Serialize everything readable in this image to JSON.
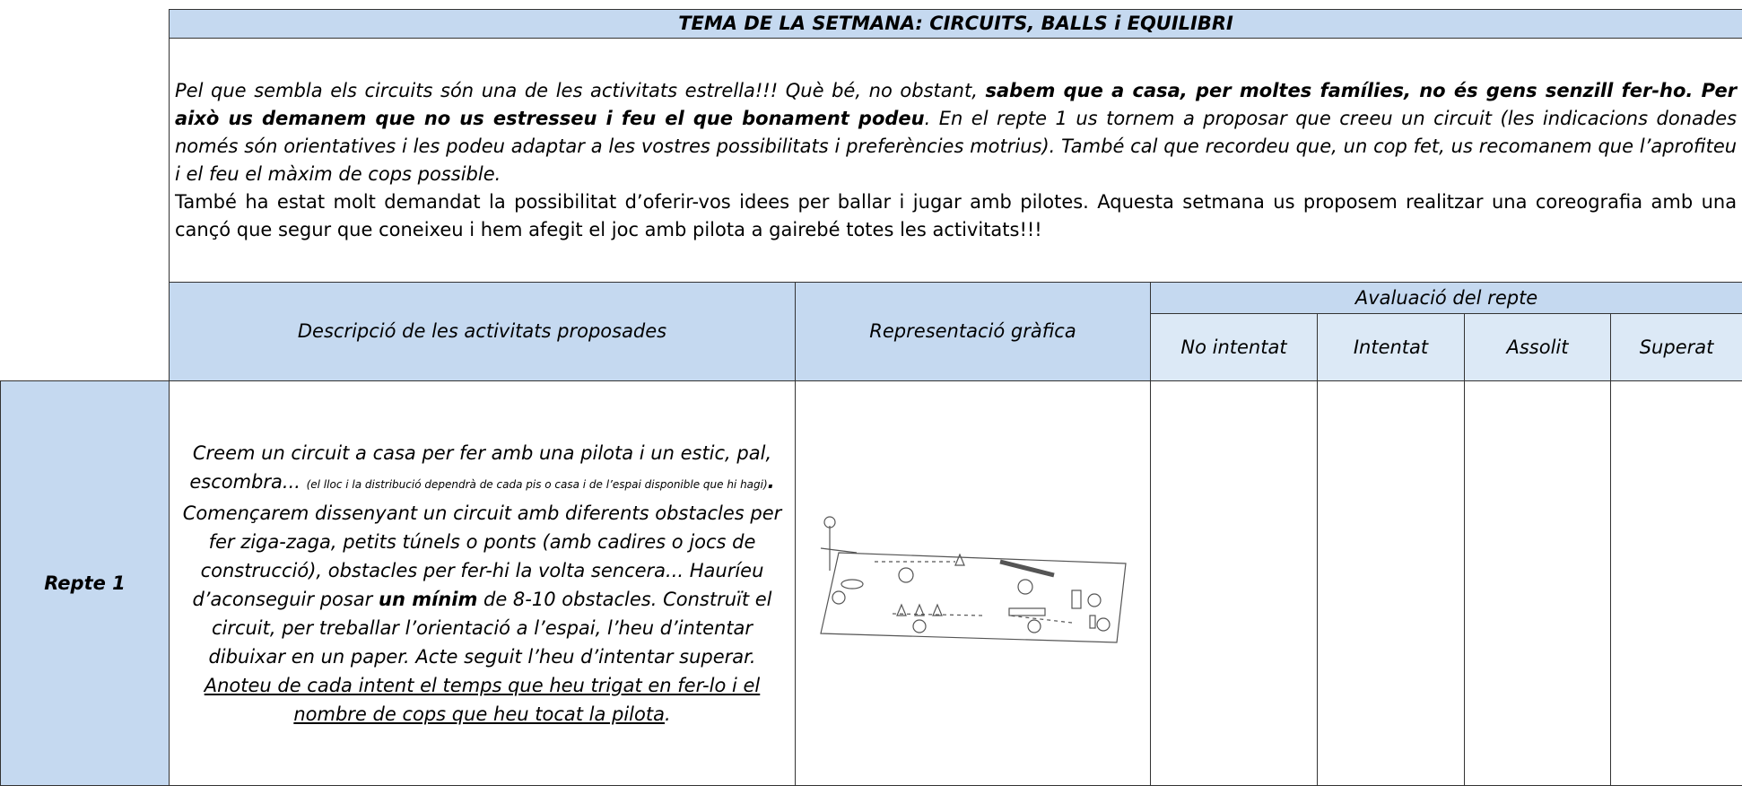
{
  "header": {
    "title": "TEMA DE LA SETMANA: CIRCUITS, BALLS i EQUILIBRI"
  },
  "intro": {
    "paragraph1": [
      "Pel que sembla els circuits són una de les activitats estrella!!! Què bé, no obstant, ",
      "sabem que a casa, per moltes famílies, no és gens senzill fer-ho. Per això us demanem que no us estresseu i feu el que bonament podeu",
      ". En el repte 1 us tornem a proposar que creeu un circuit (les indicacions donades només són orientatives i les podeu adaptar a les vostres possibilitats i preferències motrius). També cal que recordeu que, un cop fet, us recomanem que l’aprofiteu i el feu el màxim de cops possible."
    ],
    "paragraph2": "També ha estat molt demandat la possibilitat d’oferir-vos idees per ballar i jugar amb pilotes. Aquesta setmana us proposem realitzar una coreografia amb una cançó que segur que coneixeu i hem afegit el joc amb pilota a gairebé totes les activitats!!!"
  },
  "table": {
    "columns": {
      "description": "Descripció de les activitats proposades",
      "graphic": "Representació gràfica",
      "evaluation": "Avaluació del repte",
      "levels": [
        "No intentat",
        "Intentat",
        "Assolit",
        "Superat"
      ]
    },
    "rows": [
      {
        "label": "Repte 1",
        "description": [
          "Creem un circuit a casa per fer amb una pilota i un estic, pal, escombra... ",
          "(el lloc i la distribució dependrà de cada pis o casa i de l’espai disponible que hi hagi)",
          ".",
          "Començarem dissenyant un circuit amb diferents obstacles per fer ziga-zaga, petits túnels o ponts (amb cadires o jocs de construcció), obstacles per fer-hi la volta sencera... Hauríeu d’aconseguir posar ",
          "un mínim",
          " de 8-10 obstacles. Construït el circuit, per treballar l’orientació a l’espai, l’heu d’intentar dibuixar en un paper. Acte seguit l’heu d’intentar superar. ",
          "Anoteu de cada intent el temps que heu trigat en fer-lo i el nombre de cops que heu tocat la pilota",
          "."
        ]
      }
    ]
  }
}
